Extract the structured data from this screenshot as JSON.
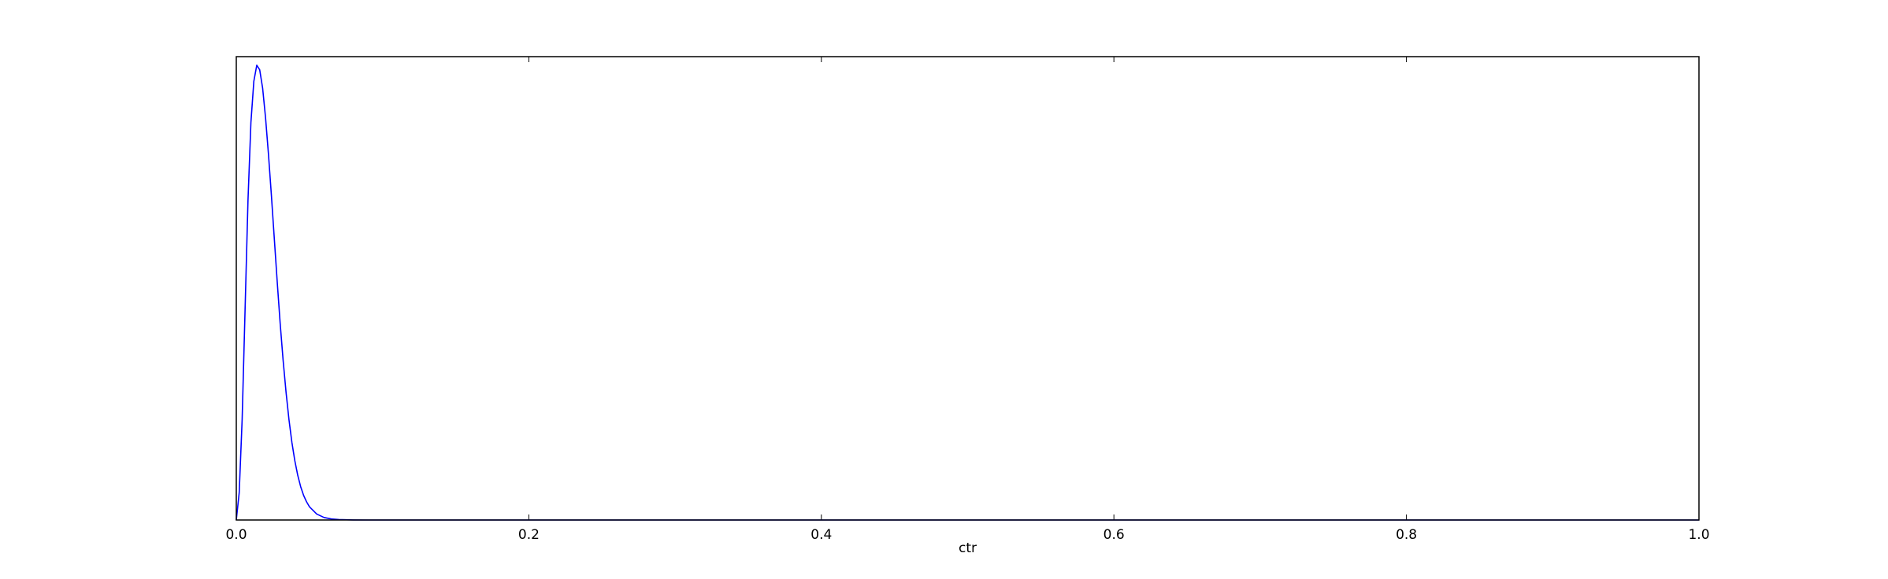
{
  "chart_data": {
    "type": "line",
    "title": "",
    "xlabel": "ctr",
    "ylabel": "",
    "xlim": [
      0.0,
      1.0
    ],
    "ylim": [
      0.0,
      1.0
    ],
    "x_ticks": [
      0.0,
      0.2,
      0.4,
      0.6,
      0.8,
      1.0
    ],
    "x_tick_labels": [
      "0.0",
      "0.2",
      "0.4",
      "0.6",
      "0.8",
      "1.0"
    ],
    "y_ticks": [],
    "grid": false,
    "legend": "none",
    "series": [
      {
        "color": "#0000ff",
        "x": [
          0.0,
          0.002,
          0.004,
          0.006,
          0.008,
          0.01,
          0.012,
          0.014,
          0.016,
          0.018,
          0.02,
          0.022,
          0.024,
          0.026,
          0.028,
          0.03,
          0.032,
          0.034,
          0.036,
          0.038,
          0.04,
          0.042,
          0.044,
          0.046,
          0.048,
          0.05,
          0.055,
          0.06,
          0.065,
          0.07,
          0.08,
          0.09,
          0.1,
          0.15,
          0.2,
          0.3,
          0.4,
          0.5,
          0.6,
          0.7,
          0.8,
          0.9,
          1.0
        ],
        "y": [
          0.0,
          0.06,
          0.22,
          0.46,
          0.7,
          0.87,
          0.96,
          0.995,
          0.985,
          0.945,
          0.88,
          0.8,
          0.71,
          0.615,
          0.52,
          0.43,
          0.35,
          0.28,
          0.22,
          0.17,
          0.13,
          0.098,
          0.073,
          0.054,
          0.04,
          0.029,
          0.013,
          0.0055,
          0.0022,
          0.0009,
          0.00015,
          2e-05,
          0.0,
          0.0,
          0.0,
          0.0,
          0.0,
          0.0,
          0.0,
          0.0,
          0.0,
          0.0,
          0.0
        ]
      }
    ]
  }
}
